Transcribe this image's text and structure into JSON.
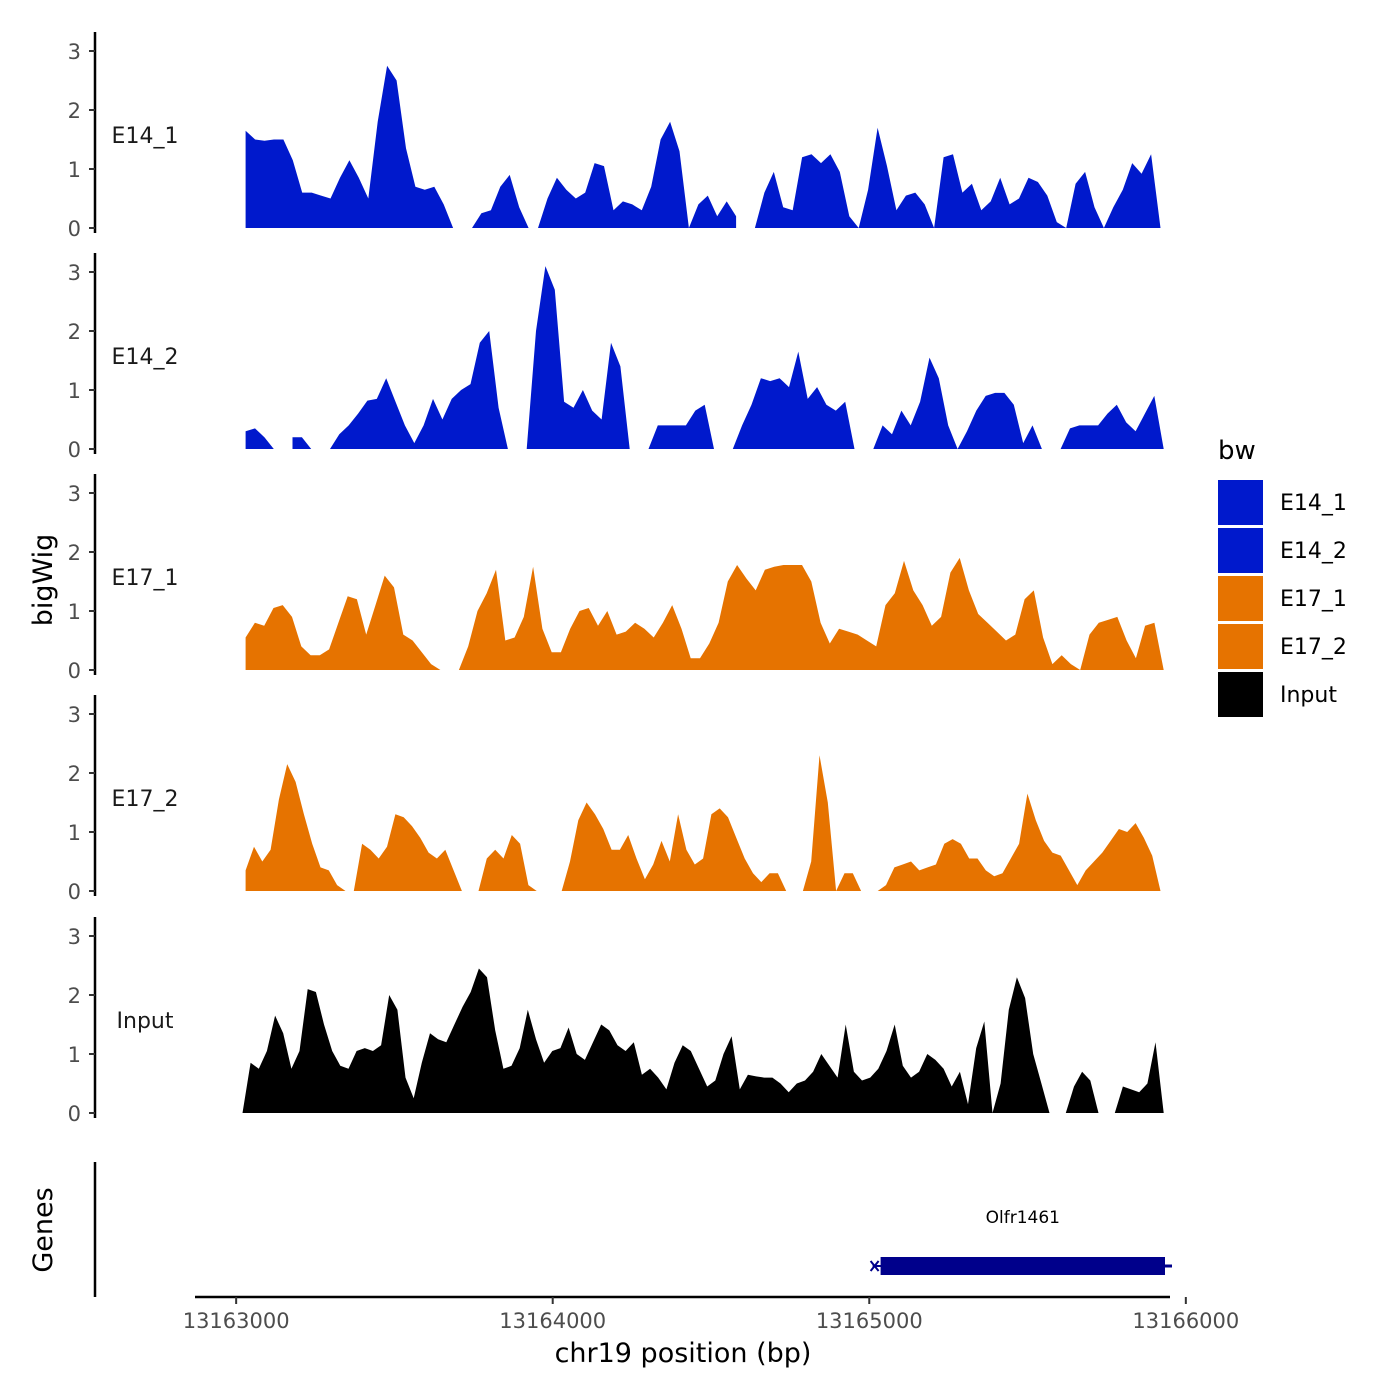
{
  "chart_data": {
    "type": "area",
    "title": "",
    "xlabel": "chr19 position (bp)",
    "ylabel": "bigWig",
    "genes_label": "Genes",
    "xlim": [
      13162870,
      13165950
    ],
    "ylim": [
      0,
      3.2
    ],
    "x_ticks": [
      13163000,
      13164000,
      13165000,
      13166000
    ],
    "y_ticks": [
      0,
      1,
      2,
      3
    ],
    "legend": {
      "title": "bw",
      "position": "right",
      "entries": [
        {
          "name": "E14_1",
          "color": "#0019CC"
        },
        {
          "name": "E14_2",
          "color": "#0019CC"
        },
        {
          "name": "E17_1",
          "color": "#E67300"
        },
        {
          "name": "E17_2",
          "color": "#E67300"
        },
        {
          "name": "Input",
          "color": "#000000"
        }
      ]
    },
    "series": [
      {
        "name": "E14_1",
        "color": "#0019CC",
        "x_start": 13163030,
        "x_end": 13165920,
        "values": [
          1.65,
          1.5,
          1.48,
          1.5,
          1.5,
          1.15,
          0.6,
          0.6,
          0.55,
          0.5,
          0.85,
          1.15,
          0.85,
          0.5,
          1.8,
          2.75,
          2.5,
          1.35,
          0.7,
          0.65,
          0.7,
          0.4,
          0.0,
          null,
          0.0,
          0.25,
          0.3,
          0.7,
          0.9,
          0.35,
          0.0,
          0.0,
          0.5,
          0.85,
          0.65,
          0.5,
          0.6,
          1.1,
          1.05,
          0.3,
          0.45,
          0.4,
          0.3,
          0.7,
          1.5,
          1.8,
          1.3,
          0.0,
          0.4,
          0.55,
          0.2,
          0.45,
          0.2,
          null,
          0.0,
          0.6,
          0.95,
          0.35,
          0.3,
          1.2,
          1.25,
          1.1,
          1.25,
          0.95,
          0.2,
          0.0,
          0.65,
          1.7,
          1.05,
          0.3,
          0.55,
          0.6,
          0.4,
          0.0,
          1.2,
          1.25,
          0.6,
          0.75,
          0.3,
          0.45,
          0.85,
          0.4,
          0.5,
          0.85,
          0.78,
          0.55,
          0.1,
          0.0,
          0.75,
          0.95,
          0.35,
          0.0,
          0.35,
          0.65,
          1.1,
          0.92,
          1.25,
          0.0
        ]
      },
      {
        "name": "E14_2",
        "color": "#0019CC",
        "x_start": 13163030,
        "x_end": 13165930,
        "values": [
          0.3,
          0.35,
          0.2,
          0.0,
          null,
          0.2,
          0.2,
          0.0,
          null,
          0.0,
          0.25,
          0.4,
          0.6,
          0.82,
          0.85,
          1.2,
          0.8,
          0.4,
          0.1,
          0.4,
          0.85,
          0.5,
          0.85,
          1.0,
          1.1,
          1.8,
          2.0,
          0.7,
          0.0,
          null,
          0.0,
          2.0,
          3.1,
          2.7,
          0.8,
          0.7,
          1.0,
          0.65,
          0.5,
          1.8,
          1.4,
          0.0,
          null,
          0.0,
          0.4,
          0.4,
          0.4,
          0.4,
          0.65,
          0.75,
          0.0,
          null,
          0.0,
          0.4,
          0.75,
          1.2,
          1.15,
          1.2,
          1.05,
          1.65,
          0.85,
          1.05,
          0.75,
          0.65,
          0.8,
          0.0,
          null,
          0.0,
          0.4,
          0.25,
          0.65,
          0.4,
          0.8,
          1.55,
          1.2,
          0.4,
          0.0,
          0.3,
          0.65,
          0.9,
          0.95,
          0.95,
          0.75,
          0.1,
          0.4,
          0.0,
          null,
          0.0,
          0.35,
          0.4,
          0.4,
          0.4,
          0.6,
          0.75,
          0.45,
          0.3,
          0.6,
          0.9,
          0.0
        ]
      },
      {
        "name": "E17_1",
        "color": "#E67300",
        "x_start": 13163030,
        "x_end": 13165930,
        "values": [
          0.55,
          0.8,
          0.75,
          1.05,
          1.1,
          0.9,
          0.4,
          0.25,
          0.25,
          0.35,
          0.8,
          1.25,
          1.2,
          0.6,
          1.1,
          1.6,
          1.4,
          0.6,
          0.5,
          0.3,
          0.1,
          0.0,
          null,
          0.0,
          0.4,
          1.0,
          1.3,
          1.7,
          0.5,
          0.55,
          0.9,
          1.75,
          0.7,
          0.3,
          0.3,
          0.7,
          1.0,
          1.05,
          0.75,
          1.0,
          0.6,
          0.65,
          0.8,
          0.7,
          0.55,
          0.8,
          1.1,
          0.7,
          0.2,
          0.2,
          0.45,
          0.8,
          1.5,
          1.78,
          1.55,
          1.35,
          1.7,
          1.75,
          1.78,
          1.78,
          1.78,
          1.5,
          0.8,
          0.45,
          0.7,
          0.65,
          0.6,
          0.5,
          0.4,
          1.1,
          1.3,
          1.85,
          1.35,
          1.1,
          0.75,
          0.9,
          1.65,
          1.9,
          1.35,
          0.95,
          0.8,
          0.65,
          0.5,
          0.6,
          1.2,
          1.35,
          0.55,
          0.1,
          0.25,
          0.1,
          0.0,
          0.6,
          0.8,
          0.85,
          0.9,
          0.5,
          0.2,
          0.75,
          0.8,
          0.0
        ]
      },
      {
        "name": "E17_2",
        "color": "#E67300",
        "x_start": 13163030,
        "x_end": 13165920,
        "values": [
          0.35,
          0.75,
          0.5,
          0.7,
          1.55,
          2.15,
          1.85,
          1.3,
          0.8,
          0.4,
          0.35,
          0.1,
          0.0,
          0.0,
          0.8,
          0.7,
          0.55,
          0.75,
          1.3,
          1.25,
          1.1,
          0.9,
          0.65,
          0.55,
          0.7,
          0.35,
          0.0,
          null,
          0.0,
          0.55,
          0.7,
          0.55,
          0.95,
          0.8,
          0.1,
          0.0,
          null,
          0.0,
          0.0,
          0.5,
          1.2,
          1.5,
          1.3,
          1.05,
          0.7,
          0.7,
          0.95,
          0.55,
          0.2,
          0.45,
          0.85,
          0.5,
          1.3,
          0.7,
          0.45,
          0.55,
          1.3,
          1.4,
          1.25,
          0.9,
          0.55,
          0.3,
          0.15,
          0.3,
          0.3,
          0.0,
          null,
          0.0,
          0.5,
          2.3,
          1.5,
          0.0,
          0.3,
          0.3,
          0.0,
          null,
          0.0,
          0.1,
          0.4,
          0.45,
          0.5,
          0.35,
          0.4,
          0.45,
          0.8,
          0.88,
          0.8,
          0.55,
          0.55,
          0.35,
          0.25,
          0.3,
          0.55,
          0.8,
          1.65,
          1.2,
          0.85,
          0.65,
          0.6,
          0.35,
          0.1,
          0.35,
          0.5,
          0.65,
          0.85,
          1.05,
          1.0,
          1.15,
          0.9,
          0.6,
          0.0
        ]
      },
      {
        "name": "Input",
        "color": "#000000",
        "x_start": 13163020,
        "x_end": 13165930,
        "values": [
          0.0,
          0.85,
          0.75,
          1.05,
          1.65,
          1.35,
          0.75,
          1.05,
          2.1,
          2.05,
          1.5,
          1.05,
          0.8,
          0.75,
          1.05,
          1.1,
          1.05,
          1.15,
          2.0,
          1.75,
          0.6,
          0.25,
          0.85,
          1.35,
          1.25,
          1.2,
          1.5,
          1.8,
          2.05,
          2.45,
          2.3,
          1.4,
          0.75,
          0.8,
          1.1,
          1.75,
          1.25,
          0.85,
          1.05,
          1.1,
          1.45,
          1.0,
          0.9,
          1.2,
          1.5,
          1.4,
          1.15,
          1.05,
          1.2,
          0.65,
          0.75,
          0.6,
          0.4,
          0.85,
          1.15,
          1.05,
          0.75,
          0.45,
          0.55,
          1.0,
          1.3,
          0.4,
          0.65,
          0.62,
          0.6,
          0.6,
          0.5,
          0.35,
          0.5,
          0.55,
          0.7,
          1.0,
          0.8,
          0.6,
          1.5,
          0.7,
          0.55,
          0.6,
          0.75,
          1.05,
          1.5,
          0.8,
          0.6,
          0.7,
          1.0,
          0.9,
          0.75,
          0.45,
          0.7,
          0.15,
          1.1,
          1.55,
          0.0,
          0.5,
          1.75,
          2.3,
          1.95,
          1.0,
          0.5,
          0.0,
          null,
          0.0,
          0.45,
          0.7,
          0.55,
          0.0,
          null,
          0.0,
          0.45,
          0.4,
          0.35,
          0.5,
          1.2,
          0.0
        ]
      }
    ],
    "genes": [
      {
        "name": "Olfr1461",
        "start": 13165020,
        "end": 13165950,
        "strand": "-",
        "color": "#00008B"
      }
    ]
  }
}
